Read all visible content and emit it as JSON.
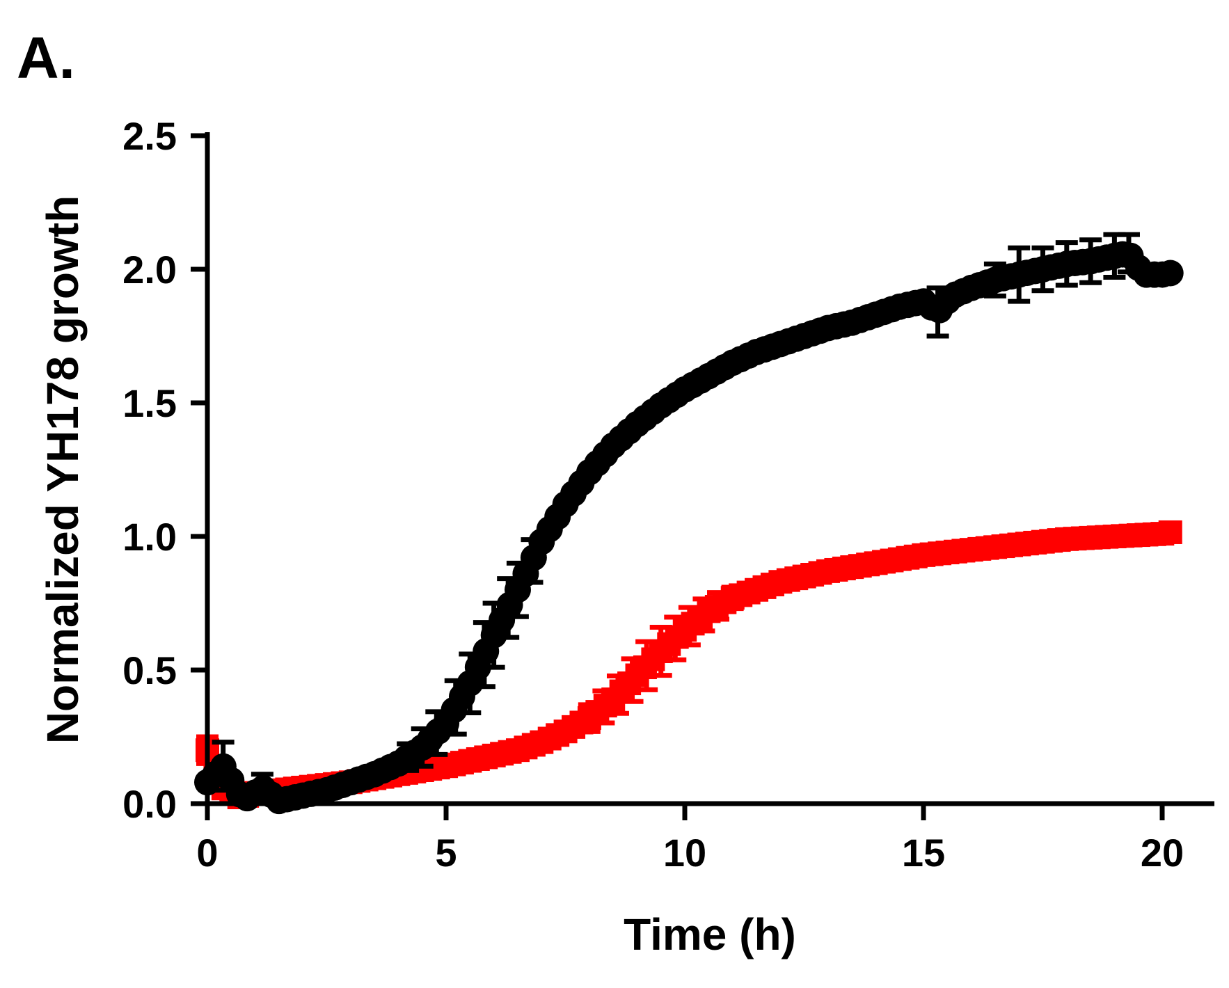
{
  "chart_data": {
    "type": "scatter",
    "panel_label": "A.",
    "title": "",
    "xlabel": "Time (h)",
    "ylabel": "Normalized YH178 growth",
    "xlim": [
      0,
      20
    ],
    "ylim": [
      0,
      2.5
    ],
    "xticks": [
      0,
      5,
      10,
      15,
      20
    ],
    "xtick_labels": [
      "0",
      "5",
      "10",
      "15",
      "20"
    ],
    "yticks": [
      0,
      0.5,
      1.0,
      1.5,
      2.0,
      2.5
    ],
    "ytick_labels": [
      "0.0",
      "0.5",
      "1.0",
      "1.5",
      "2.0",
      "2.5"
    ],
    "grid": false,
    "legend": null,
    "series_colors": {
      "black": "#000000",
      "red": "#ff0000"
    },
    "series": [
      {
        "name": "black circles",
        "color": "#000000",
        "marker": "circle",
        "interval_h": 0.1667,
        "x_end": 20.3,
        "control_points": {
          "x": [
            0,
            0.33,
            0.75,
            1.15,
            1.5,
            2,
            2.5,
            3,
            3.5,
            4,
            4.5,
            5,
            5.5,
            6,
            6.5,
            7,
            7.5,
            8,
            8.5,
            9,
            9.5,
            10,
            10.5,
            11,
            11.5,
            12,
            12.5,
            13,
            13.5,
            14,
            14.5,
            15,
            15.3,
            15.6,
            16,
            16.5,
            17,
            17.5,
            18,
            18.5,
            19,
            19.3,
            19.6,
            20,
            20.3
          ],
          "y": [
            0.08,
            0.14,
            0.01,
            0.06,
            0.01,
            0.03,
            0.05,
            0.08,
            0.11,
            0.15,
            0.21,
            0.3,
            0.45,
            0.63,
            0.8,
            0.98,
            1.12,
            1.24,
            1.34,
            1.42,
            1.49,
            1.55,
            1.6,
            1.65,
            1.69,
            1.72,
            1.75,
            1.78,
            1.8,
            1.83,
            1.86,
            1.88,
            1.84,
            1.9,
            1.93,
            1.96,
            1.98,
            2.0,
            2.02,
            2.03,
            2.05,
            2.06,
            1.98,
            1.98,
            1.99
          ]
        },
        "error_bar_points": {
          "x": [
            0.33,
            1.15,
            4.2,
            4.5,
            4.8,
            5.2,
            5.5,
            5.8,
            6.0,
            6.3,
            6.5,
            6.8,
            15.3,
            16.5,
            17.0,
            17.5,
            18.0,
            18.5,
            19.0,
            19.3
          ],
          "err": [
            0.09,
            0.05,
            0.05,
            0.07,
            0.08,
            0.1,
            0.11,
            0.12,
            0.12,
            0.11,
            0.1,
            0.08,
            0.09,
            0.06,
            0.1,
            0.08,
            0.08,
            0.08,
            0.08,
            0.07
          ]
        }
      },
      {
        "name": "red squares",
        "color": "#ff0000",
        "marker": "square",
        "interval_h": 0.1667,
        "x_end": 20.3,
        "control_points": {
          "x": [
            0,
            0.3,
            0.7,
            1,
            1.5,
            2,
            3,
            4,
            5,
            5.5,
            6,
            6.5,
            7,
            7.5,
            8,
            8.5,
            9,
            9.5,
            10,
            10.5,
            11,
            11.5,
            12,
            13,
            14,
            15,
            16,
            17,
            18,
            19,
            20,
            20.3
          ],
          "y": [
            0.2,
            0.06,
            0.02,
            0.04,
            0.05,
            0.06,
            0.08,
            0.11,
            0.14,
            0.16,
            0.18,
            0.2,
            0.23,
            0.27,
            0.32,
            0.39,
            0.48,
            0.57,
            0.65,
            0.72,
            0.77,
            0.8,
            0.83,
            0.87,
            0.9,
            0.93,
            0.95,
            0.97,
            0.99,
            1.0,
            1.01,
            1.02
          ]
        },
        "error_bar_points": {
          "x": [
            0,
            8.0,
            8.3,
            8.6,
            8.9,
            9.2,
            9.5,
            9.8,
            10.1,
            10.4,
            10.7,
            11.0
          ],
          "err": [
            0.05,
            0.05,
            0.06,
            0.07,
            0.08,
            0.09,
            0.09,
            0.08,
            0.07,
            0.06,
            0.05,
            0.04
          ]
        }
      }
    ]
  }
}
